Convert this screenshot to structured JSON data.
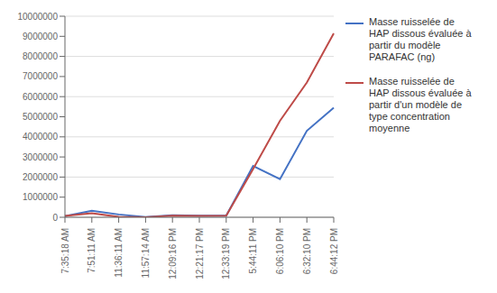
{
  "chart_data": {
    "type": "line",
    "categories": [
      "7:35:18 AM",
      "7:51:11 AM",
      "11:36:11 AM",
      "11:57:14 AM",
      "12:09:16 PM",
      "12:21:17 PM",
      "12:33:19 PM",
      "5:44:11 PM",
      "6:06:10 PM",
      "6:32:10 PM",
      "6:44:12 PM"
    ],
    "series": [
      {
        "name": "Masse ruisselée de\nHAP dissous évaluée à\npartir du modèle\nPARAFAC (ng)",
        "color": "#4472C4",
        "values": [
          60000,
          320000,
          140000,
          10000,
          100000,
          80000,
          80000,
          2550000,
          1900000,
          4300000,
          5450000
        ]
      },
      {
        "name": "Masse ruisselée de\nHAP dissous évaluée à\npartir d'un modèle de\ntype concentration\nmoyenne",
        "color": "#BE4B48",
        "values": [
          70000,
          200000,
          20000,
          5000,
          80000,
          70000,
          80000,
          2400000,
          4800000,
          6700000,
          9150000
        ]
      }
    ],
    "ylim": [
      0,
      10000000
    ],
    "yticks": [
      0,
      1000000,
      2000000,
      3000000,
      4000000,
      5000000,
      6000000,
      7000000,
      8000000,
      9000000,
      10000000
    ],
    "grid": true,
    "legend": "right"
  }
}
